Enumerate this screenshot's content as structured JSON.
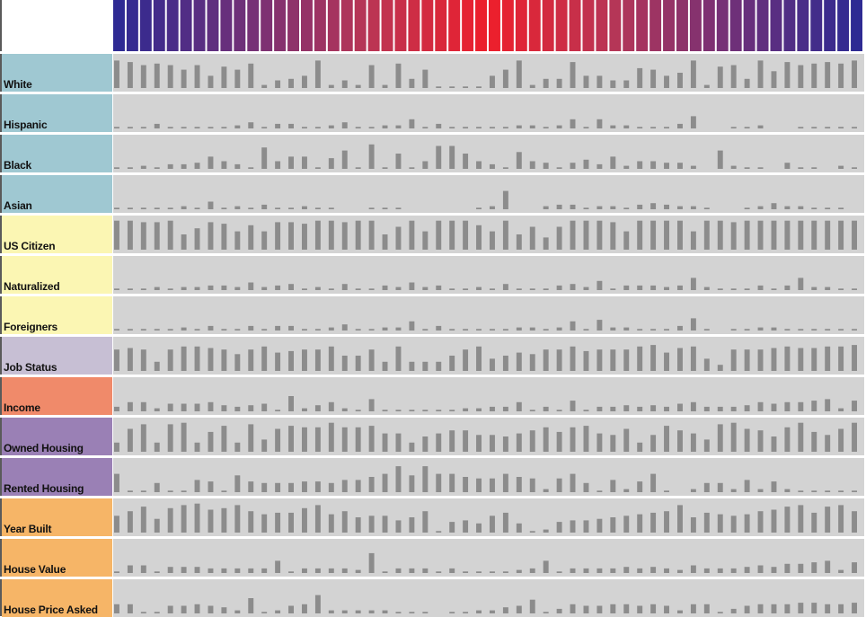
{
  "chart_data": {
    "type": "bar",
    "description_colors": {
      "label_bg": {
        "race": "#9fc8d2",
        "citizenship": "#fbf6b3",
        "job": "#c7bfd4",
        "income": "#f08a6a",
        "housing": "#9a80b5",
        "building": "#f6b567"
      },
      "plot_bg": "#d3d3d3",
      "bar_color": "#8c8c8c",
      "header_gradient": [
        "#2e2a93",
        "#6f3079",
        "#b83656",
        "#ee1f2b",
        "#b83656",
        "#6f3079",
        "#2e2a93"
      ]
    },
    "num_columns": 56,
    "rows": [
      {
        "label": "White",
        "group": "race",
        "values": [
          0.9,
          0.85,
          0.75,
          0.8,
          0.75,
          0.6,
          0.75,
          0.4,
          0.7,
          0.6,
          0.8,
          0.1,
          0.25,
          0.3,
          0.4,
          0.9,
          0.1,
          0.25,
          0.1,
          0.75,
          0.1,
          0.8,
          0.3,
          0.6,
          0.05,
          0.05,
          0.05,
          0.05,
          0.4,
          0.6,
          0.9,
          0.1,
          0.3,
          0.3,
          0.85,
          0.4,
          0.4,
          0.25,
          0.25,
          0.65,
          0.6,
          0.4,
          0.5,
          0.9,
          0.1,
          0.7,
          0.75,
          0.3,
          0.9,
          0.55,
          0.85,
          0.75,
          0.8,
          0.85,
          0.8,
          0.9
        ]
      },
      {
        "label": "Hispanic",
        "group": "race",
        "values": [
          0.05,
          0.05,
          0.05,
          0.15,
          0.05,
          0.05,
          0.05,
          0.05,
          0.05,
          0.1,
          0.2,
          0.05,
          0.15,
          0.15,
          0.05,
          0.05,
          0.1,
          0.2,
          0.05,
          0.05,
          0.1,
          0.1,
          0.3,
          0.05,
          0.15,
          0.05,
          0.05,
          0.05,
          0.05,
          0.05,
          0.1,
          0.1,
          0.05,
          0.1,
          0.3,
          0.05,
          0.3,
          0.1,
          0.1,
          0.05,
          0.05,
          0.05,
          0.15,
          0.4,
          0.0,
          0.0,
          0.05,
          0.05,
          0.1,
          0.0,
          0.0,
          0.05,
          0.05,
          0.05,
          0.05,
          0.05
        ]
      },
      {
        "label": "Black",
        "group": "race",
        "values": [
          0.05,
          0.05,
          0.1,
          0.05,
          0.15,
          0.15,
          0.2,
          0.4,
          0.25,
          0.15,
          0.05,
          0.7,
          0.25,
          0.4,
          0.4,
          0.05,
          0.35,
          0.6,
          0.05,
          0.8,
          0.05,
          0.5,
          0.05,
          0.25,
          0.75,
          0.75,
          0.5,
          0.25,
          0.15,
          0.05,
          0.55,
          0.25,
          0.2,
          0.05,
          0.2,
          0.3,
          0.15,
          0.4,
          0.1,
          0.25,
          0.25,
          0.2,
          0.2,
          0.1,
          0.0,
          0.6,
          0.1,
          0.05,
          0.05,
          0.0,
          0.2,
          0.05,
          0.05,
          0.0,
          0.1,
          0.05
        ]
      },
      {
        "label": "Asian",
        "group": "race",
        "values": [
          0.05,
          0.05,
          0.05,
          0.05,
          0.05,
          0.1,
          0.05,
          0.25,
          0.05,
          0.1,
          0.05,
          0.15,
          0.05,
          0.05,
          0.1,
          0.05,
          0.05,
          0.0,
          0.0,
          0.05,
          0.05,
          0.05,
          0.0,
          0.0,
          0.0,
          0.0,
          0.0,
          0.05,
          0.1,
          0.6,
          0.0,
          0.0,
          0.1,
          0.15,
          0.15,
          0.05,
          0.1,
          0.1,
          0.05,
          0.15,
          0.2,
          0.15,
          0.1,
          0.1,
          0.05,
          0.0,
          0.0,
          0.05,
          0.1,
          0.2,
          0.1,
          0.1,
          0.05,
          0.05,
          0.05,
          0.0
        ]
      },
      {
        "label": "US Citizen",
        "group": "citizenship",
        "values": [
          0.95,
          0.95,
          0.9,
          0.9,
          0.95,
          0.5,
          0.7,
          0.9,
          0.85,
          0.6,
          0.8,
          0.6,
          0.9,
          0.9,
          0.85,
          0.95,
          0.95,
          0.9,
          0.95,
          0.95,
          0.5,
          0.75,
          0.95,
          0.6,
          0.95,
          0.95,
          0.95,
          0.8,
          0.6,
          0.95,
          0.5,
          0.75,
          0.4,
          0.75,
          0.95,
          0.95,
          0.95,
          0.9,
          0.6,
          0.95,
          0.95,
          0.95,
          0.95,
          0.6,
          0.95,
          0.95,
          0.9,
          0.95,
          0.95,
          0.95,
          0.95,
          0.95,
          0.95,
          0.95,
          0.95,
          0.95
        ]
      },
      {
        "label": "Naturalized",
        "group": "citizenship",
        "values": [
          0.05,
          0.05,
          0.05,
          0.1,
          0.05,
          0.1,
          0.1,
          0.15,
          0.15,
          0.1,
          0.25,
          0.1,
          0.15,
          0.2,
          0.05,
          0.1,
          0.05,
          0.2,
          0.05,
          0.05,
          0.15,
          0.1,
          0.25,
          0.1,
          0.15,
          0.05,
          0.05,
          0.1,
          0.05,
          0.2,
          0.05,
          0.05,
          0.05,
          0.15,
          0.2,
          0.1,
          0.3,
          0.05,
          0.15,
          0.15,
          0.15,
          0.1,
          0.15,
          0.4,
          0.1,
          0.05,
          0.05,
          0.05,
          0.15,
          0.05,
          0.15,
          0.4,
          0.1,
          0.1,
          0.05,
          0.05
        ]
      },
      {
        "label": "Foreigners",
        "group": "citizenship",
        "values": [
          0.05,
          0.05,
          0.05,
          0.05,
          0.05,
          0.1,
          0.05,
          0.15,
          0.05,
          0.05,
          0.15,
          0.05,
          0.15,
          0.15,
          0.05,
          0.05,
          0.1,
          0.2,
          0.05,
          0.05,
          0.1,
          0.1,
          0.3,
          0.05,
          0.15,
          0.05,
          0.05,
          0.05,
          0.05,
          0.05,
          0.1,
          0.1,
          0.05,
          0.1,
          0.3,
          0.05,
          0.35,
          0.1,
          0.1,
          0.05,
          0.05,
          0.05,
          0.15,
          0.4,
          0.05,
          0.0,
          0.05,
          0.05,
          0.1,
          0.1,
          0.05,
          0.05,
          0.05,
          0.05,
          0.05,
          0.05
        ]
      },
      {
        "label": "Job Status",
        "group": "job",
        "values": [
          0.7,
          0.75,
          0.7,
          0.3,
          0.7,
          0.8,
          0.8,
          0.75,
          0.7,
          0.55,
          0.7,
          0.8,
          0.6,
          0.65,
          0.7,
          0.7,
          0.8,
          0.5,
          0.5,
          0.7,
          0.3,
          0.8,
          0.3,
          0.3,
          0.3,
          0.5,
          0.7,
          0.8,
          0.4,
          0.5,
          0.6,
          0.55,
          0.7,
          0.7,
          0.8,
          0.65,
          0.7,
          0.7,
          0.7,
          0.8,
          0.85,
          0.6,
          0.75,
          0.8,
          0.4,
          0.2,
          0.7,
          0.7,
          0.7,
          0.75,
          0.8,
          0.75,
          0.75,
          0.8,
          0.8,
          0.85
        ]
      },
      {
        "label": "Income",
        "group": "income",
        "values": [
          0.15,
          0.3,
          0.3,
          0.1,
          0.25,
          0.25,
          0.25,
          0.3,
          0.2,
          0.15,
          0.2,
          0.25,
          0.05,
          0.5,
          0.1,
          0.2,
          0.3,
          0.1,
          0.05,
          0.4,
          0.05,
          0.05,
          0.05,
          0.05,
          0.05,
          0.05,
          0.1,
          0.1,
          0.15,
          0.15,
          0.3,
          0.05,
          0.15,
          0.05,
          0.35,
          0.05,
          0.15,
          0.15,
          0.2,
          0.15,
          0.2,
          0.15,
          0.25,
          0.3,
          0.15,
          0.15,
          0.15,
          0.2,
          0.3,
          0.25,
          0.3,
          0.3,
          0.35,
          0.4,
          0.1,
          0.35
        ]
      },
      {
        "label": "Owned Housing",
        "group": "housing",
        "values": [
          0.3,
          0.75,
          0.9,
          0.3,
          0.9,
          0.95,
          0.3,
          0.65,
          0.85,
          0.3,
          0.9,
          0.4,
          0.75,
          0.85,
          0.8,
          0.8,
          0.95,
          0.8,
          0.8,
          0.85,
          0.6,
          0.6,
          0.3,
          0.5,
          0.6,
          0.7,
          0.7,
          0.55,
          0.55,
          0.5,
          0.6,
          0.7,
          0.8,
          0.65,
          0.8,
          0.85,
          0.6,
          0.55,
          0.75,
          0.3,
          0.55,
          0.85,
          0.7,
          0.6,
          0.4,
          0.9,
          0.95,
          0.75,
          0.7,
          0.5,
          0.8,
          0.95,
          0.65,
          0.55,
          0.75,
          0.95
        ]
      },
      {
        "label": "Rented Housing",
        "group": "housing",
        "values": [
          0.6,
          0.05,
          0.05,
          0.3,
          0.05,
          0.05,
          0.4,
          0.35,
          0.05,
          0.55,
          0.35,
          0.3,
          0.3,
          0.3,
          0.35,
          0.35,
          0.3,
          0.4,
          0.4,
          0.5,
          0.6,
          0.85,
          0.55,
          0.85,
          0.6,
          0.6,
          0.5,
          0.45,
          0.45,
          0.6,
          0.5,
          0.45,
          0.1,
          0.45,
          0.6,
          0.3,
          0.05,
          0.4,
          0.1,
          0.35,
          0.6,
          0.05,
          0.0,
          0.1,
          0.3,
          0.3,
          0.1,
          0.4,
          0.1,
          0.35,
          0.1,
          0.05,
          0.05,
          0.05,
          0.05,
          0.05
        ]
      },
      {
        "label": "Year Built",
        "group": "building",
        "values": [
          0.55,
          0.7,
          0.85,
          0.45,
          0.8,
          0.9,
          0.95,
          0.75,
          0.8,
          0.9,
          0.7,
          0.6,
          0.65,
          0.65,
          0.8,
          0.9,
          0.6,
          0.7,
          0.5,
          0.55,
          0.55,
          0.4,
          0.5,
          0.7,
          0.05,
          0.35,
          0.4,
          0.3,
          0.55,
          0.65,
          0.3,
          0.05,
          0.1,
          0.35,
          0.4,
          0.4,
          0.45,
          0.5,
          0.55,
          0.6,
          0.65,
          0.7,
          0.9,
          0.5,
          0.65,
          0.6,
          0.55,
          0.6,
          0.7,
          0.75,
          0.85,
          0.9,
          0.65,
          0.85,
          0.9,
          0.7
        ]
      },
      {
        "label": "House Value",
        "group": "building",
        "values": [
          0.05,
          0.25,
          0.25,
          0.05,
          0.2,
          0.2,
          0.2,
          0.15,
          0.15,
          0.15,
          0.15,
          0.15,
          0.4,
          0.05,
          0.15,
          0.15,
          0.15,
          0.15,
          0.1,
          0.65,
          0.05,
          0.15,
          0.15,
          0.15,
          0.05,
          0.15,
          0.05,
          0.05,
          0.05,
          0.05,
          0.1,
          0.15,
          0.4,
          0.05,
          0.15,
          0.15,
          0.15,
          0.15,
          0.2,
          0.15,
          0.2,
          0.15,
          0.1,
          0.25,
          0.15,
          0.15,
          0.15,
          0.2,
          0.25,
          0.2,
          0.3,
          0.3,
          0.35,
          0.4,
          0.1,
          0.35
        ]
      },
      {
        "label": "House Price Asked",
        "group": "building",
        "values": [
          0.3,
          0.3,
          0.05,
          0.05,
          0.25,
          0.25,
          0.3,
          0.25,
          0.2,
          0.1,
          0.5,
          0.05,
          0.1,
          0.25,
          0.3,
          0.6,
          0.1,
          0.1,
          0.1,
          0.1,
          0.1,
          0.05,
          0.05,
          0.05,
          0.0,
          0.05,
          0.05,
          0.1,
          0.1,
          0.2,
          0.25,
          0.45,
          0.05,
          0.15,
          0.3,
          0.25,
          0.25,
          0.3,
          0.3,
          0.25,
          0.3,
          0.25,
          0.1,
          0.3,
          0.3,
          0.05,
          0.15,
          0.25,
          0.3,
          0.3,
          0.3,
          0.35,
          0.35,
          0.3,
          0.3,
          0.35
        ]
      }
    ]
  }
}
